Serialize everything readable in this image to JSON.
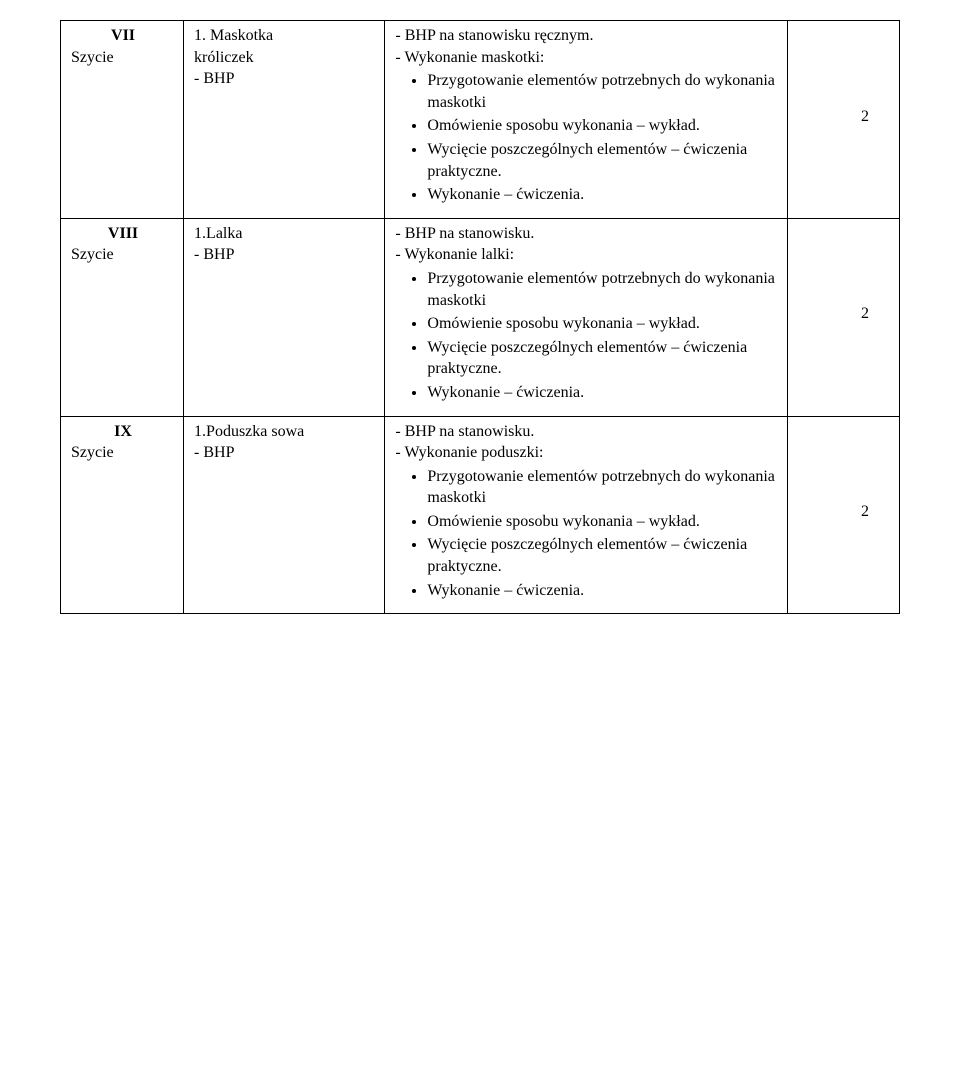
{
  "rows": [
    {
      "col1": {
        "roman": "VII",
        "label": "Szycie"
      },
      "col2": {
        "item": "1. Maskotka",
        "sub": "króliczek",
        "bhp": "- BHP"
      },
      "col3": {
        "line1": "- BHP na stanowisku ręcznym.",
        "line2": "- Wykonanie maskotki:",
        "bullets": [
          "Przygotowanie elementów potrzebnych do wykonania maskotki",
          "Omówienie sposobu wykonania – wykład.",
          "Wycięcie poszczególnych elementów – ćwiczenia praktyczne.",
          "Wykonanie – ćwiczenia."
        ]
      },
      "col4": "2"
    },
    {
      "col1": {
        "roman": "VIII",
        "label": "Szycie"
      },
      "col2": {
        "item": "1.Lalka",
        "sub": "",
        "bhp": "- BHP"
      },
      "col3": {
        "line1": "- BHP na stanowisku.",
        "line2": "- Wykonanie lalki:",
        "bullets": [
          "Przygotowanie elementów potrzebnych do wykonania maskotki",
          "Omówienie sposobu wykonania – wykład.",
          "Wycięcie poszczególnych elementów – ćwiczenia praktyczne.",
          "Wykonanie – ćwiczenia."
        ]
      },
      "col4": "2"
    },
    {
      "col1": {
        "roman": "IX",
        "label": "Szycie"
      },
      "col2": {
        "item": "1.Poduszka sowa",
        "sub": "",
        "bhp": "- BHP"
      },
      "col3": {
        "line1": "- BHP na stanowisku.",
        "line2": "- Wykonanie poduszki:",
        "bullets": [
          "Przygotowanie elementów potrzebnych do wykonania maskotki",
          "Omówienie sposobu wykonania – wykład.",
          "Wycięcie poszczególnych elementów – ćwiczenia praktyczne.",
          "Wykonanie – ćwiczenia."
        ]
      },
      "col4": "2"
    }
  ]
}
